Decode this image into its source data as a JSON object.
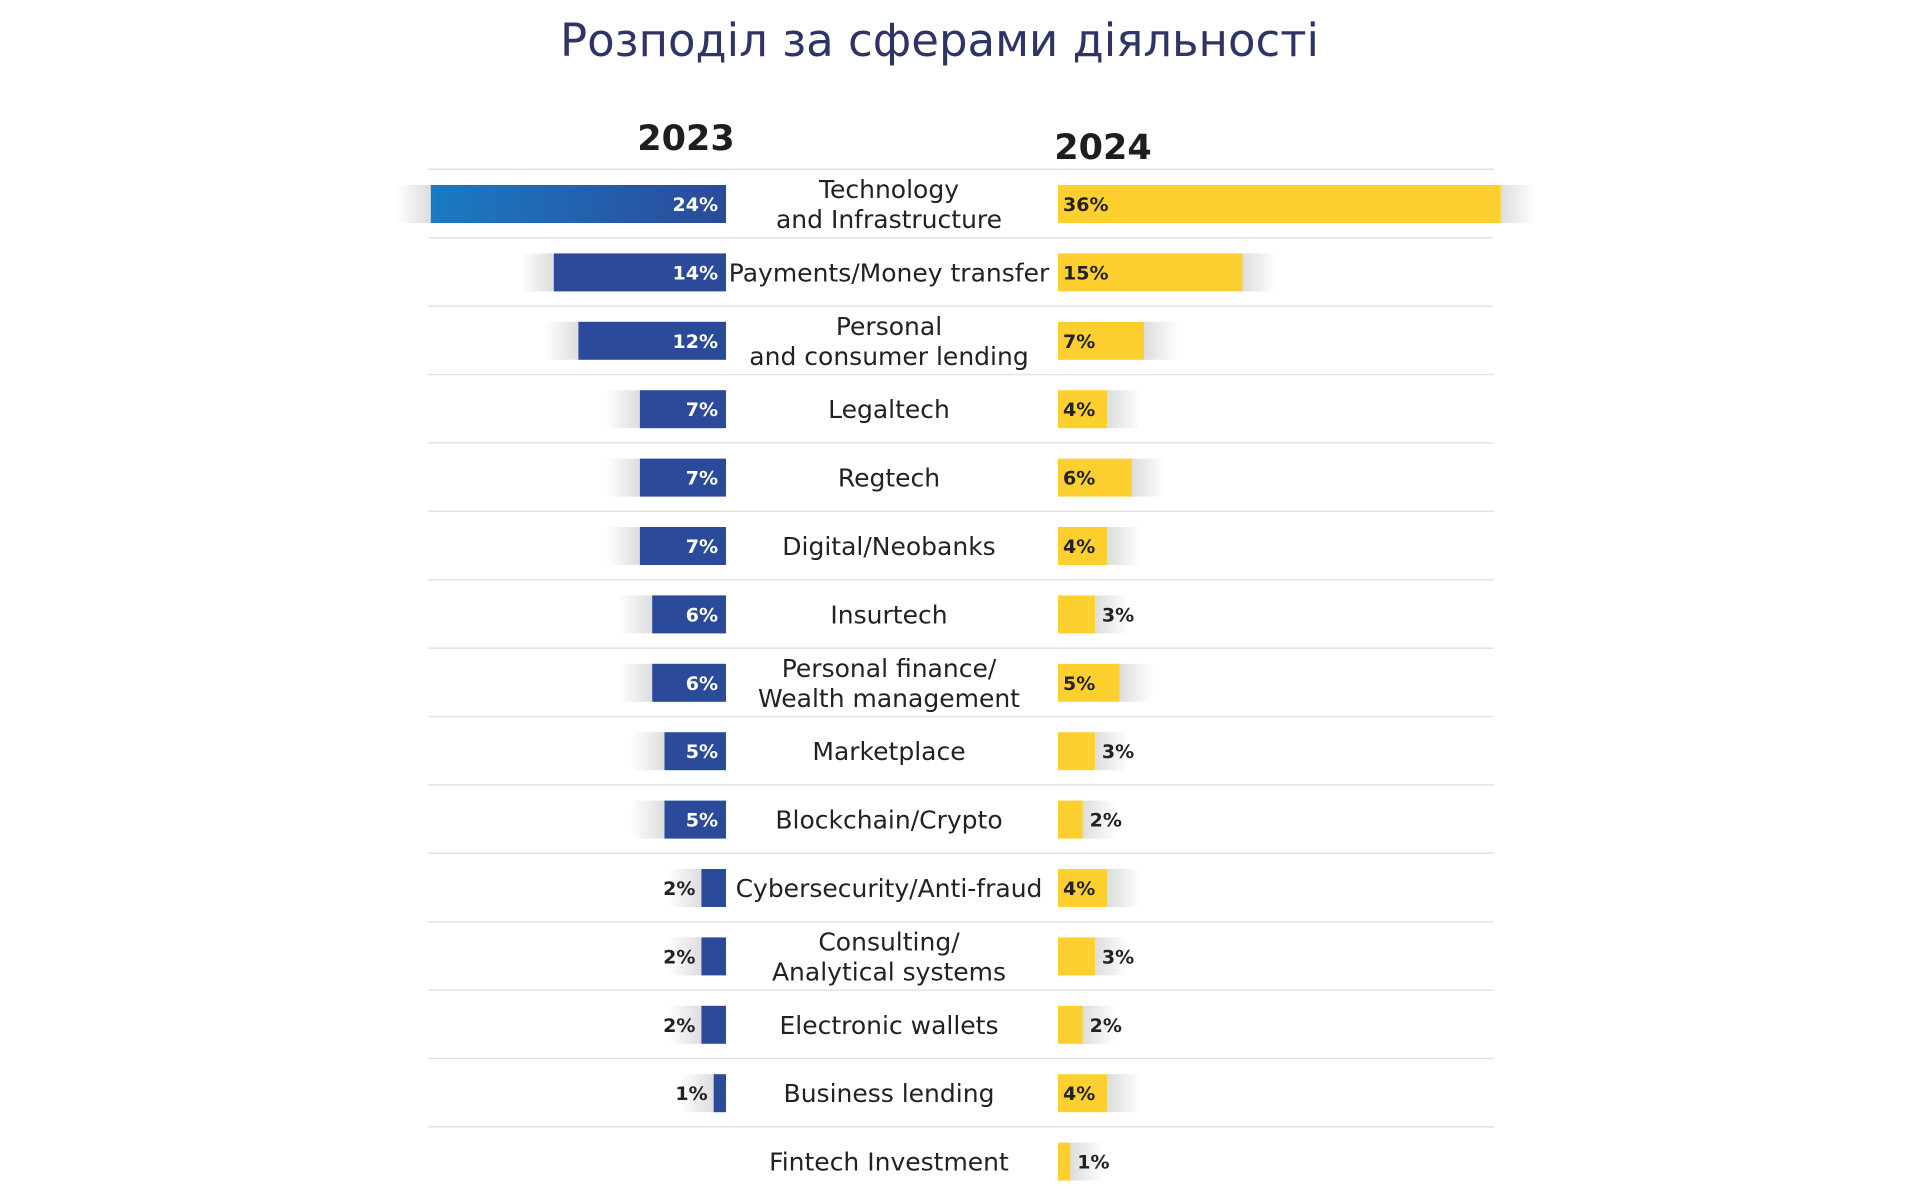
{
  "chart_data": {
    "type": "bar",
    "title": "Розподіл за сферами діяльності",
    "colors": {
      "2023": "#2b4a9a",
      "2024": "#fdd02f",
      "title": "#2e3566"
    },
    "categories": [
      "Technology\nand Infrastructure",
      "Payments/Money transfer",
      "Personal\nand consumer lending",
      "Legaltech",
      "Regtech",
      "Digital/Neobanks",
      "Insurtech",
      "Personal finance/\nWealth management",
      "Marketplace",
      "Blockchain/Crypto",
      "Cybersecurity/Anti-fraud",
      "Consulting/\nAnalytical systems",
      "Electronic wallets",
      "Business lending",
      "Fintech Investment"
    ],
    "series": [
      {
        "name": "2023",
        "values": [
          24,
          14,
          12,
          7,
          7,
          7,
          6,
          6,
          5,
          5,
          2,
          2,
          2,
          1,
          null
        ],
        "labels": [
          "24%",
          "14%",
          "12%",
          "7%",
          "7%",
          "7%",
          "6%",
          "6%",
          "5%",
          "5%",
          "2%",
          "2%",
          "2%",
          "1%",
          null
        ]
      },
      {
        "name": "2024",
        "values": [
          36,
          15,
          7,
          4,
          6,
          4,
          3,
          5,
          3,
          2,
          4,
          3,
          2,
          4,
          1
        ],
        "labels": [
          "36%",
          "15%",
          "7%",
          "4%",
          "6%",
          "4%",
          "3%",
          "5%",
          "3%",
          "2%",
          "4%",
          "3%",
          "2%",
          "4%",
          "1%"
        ]
      }
    ]
  }
}
